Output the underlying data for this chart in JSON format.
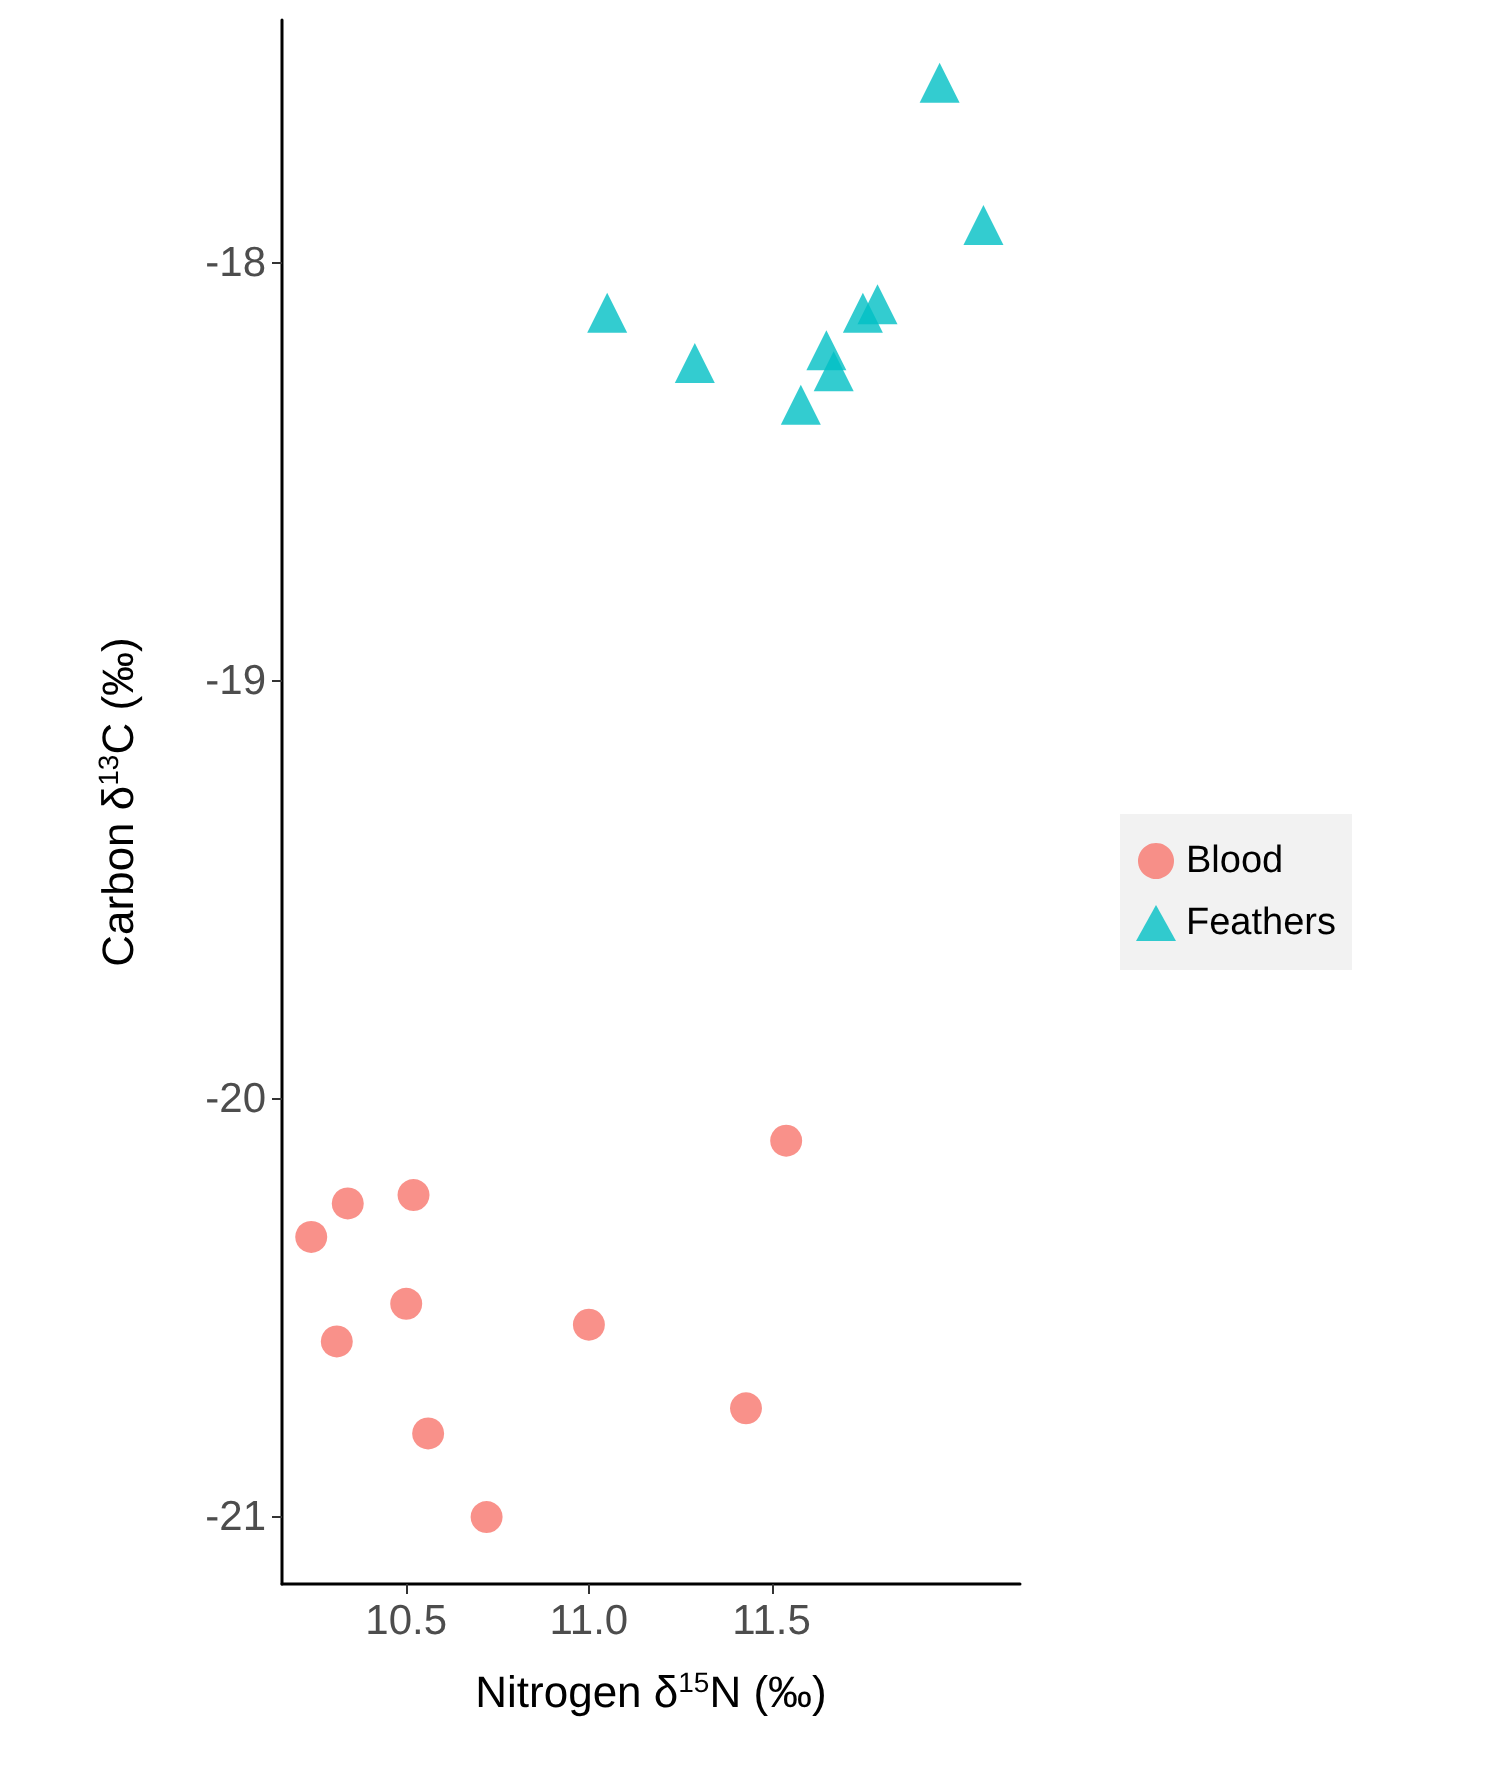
{
  "chart_data": {
    "type": "scatter",
    "xlabel": "Nitrogen δ$^{15}$N (‰)",
    "ylabel": "Carbon δ$^{13}$C (‰)",
    "xlim": [
      10.16,
      12.18
    ],
    "ylim": [
      -21.16,
      -17.42
    ],
    "xticks": [
      10.5,
      {
        "value": 11,
        "label": "11.0"
      },
      11.5
    ],
    "yticks": [
      -21,
      -20,
      -19,
      -18
    ],
    "grid": false,
    "legend": "right",
    "series": [
      {
        "name": "Blood",
        "color": "#f8766d",
        "marker": "circle",
        "x": [
          10.24,
          10.34,
          10.52,
          10.31,
          10.5,
          10.56,
          10.72,
          11.0,
          11.43,
          11.54
        ],
        "values": [
          -20.33,
          -20.25,
          -20.23,
          -20.58,
          -20.49,
          -20.8,
          -21.0,
          -20.54,
          -20.74,
          -20.1
        ]
      },
      {
        "name": "Feathers",
        "color": "#00bfc4",
        "marker": "triangle",
        "x": [
          11.96,
          12.08,
          11.05,
          11.29,
          11.58,
          11.65,
          11.67,
          11.75,
          11.79
        ],
        "values": [
          -17.57,
          -17.91,
          -18.12,
          -18.24,
          -18.34,
          -18.21,
          -18.26,
          -18.12,
          -18.1
        ]
      }
    ]
  }
}
